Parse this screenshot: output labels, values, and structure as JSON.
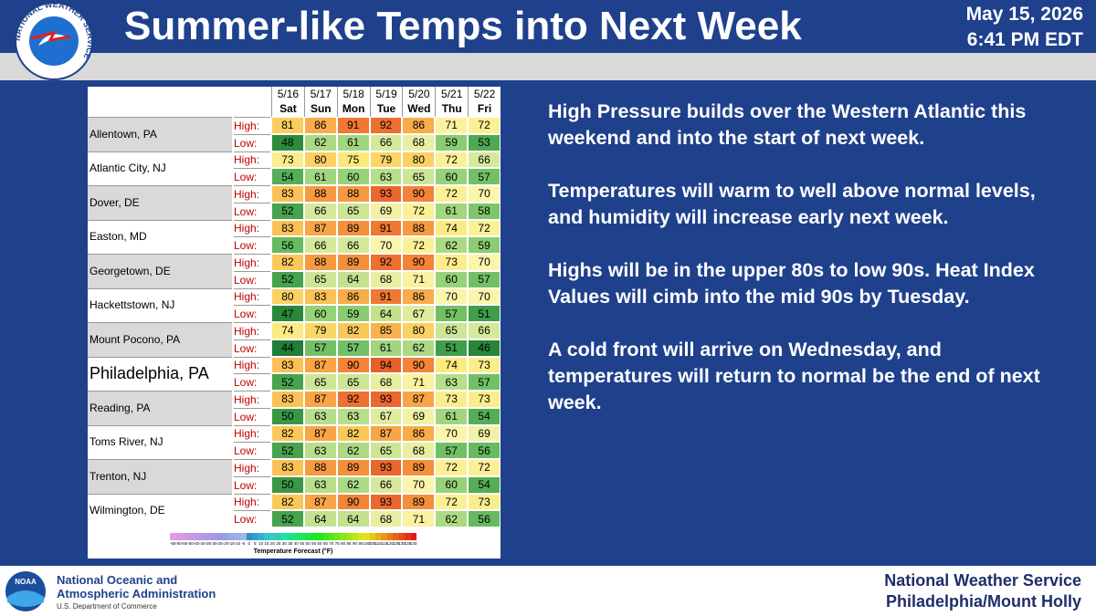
{
  "header": {
    "logo_text": "NATIONAL WEATHER SERVICE",
    "title": "Summer-like Temps into Next Week",
    "date": "May 15, 2026",
    "time": "6:41 PM EDT"
  },
  "table": {
    "dates": [
      "5/16",
      "5/17",
      "5/18",
      "5/19",
      "5/20",
      "5/21",
      "5/22"
    ],
    "days": [
      "Sat",
      "Sun",
      "Mon",
      "Tue",
      "Wed",
      "Thu",
      "Fri"
    ],
    "row_labels": [
      "High:",
      "Low:"
    ],
    "rows": [
      {
        "city": "Allentown, PA",
        "high": [
          81,
          86,
          91,
          92,
          86,
          71,
          72
        ],
        "low": [
          48,
          62,
          61,
          66,
          68,
          59,
          53
        ]
      },
      {
        "city": "Atlantic City, NJ",
        "high": [
          73,
          80,
          75,
          79,
          80,
          72,
          66
        ],
        "low": [
          54,
          61,
          60,
          63,
          65,
          60,
          57
        ]
      },
      {
        "city": "Dover, DE",
        "high": [
          83,
          88,
          88,
          93,
          90,
          72,
          70
        ],
        "low": [
          52,
          66,
          65,
          69,
          72,
          61,
          58
        ]
      },
      {
        "city": "Easton, MD",
        "high": [
          83,
          87,
          89,
          91,
          88,
          74,
          72
        ],
        "low": [
          56,
          66,
          66,
          70,
          72,
          62,
          59
        ]
      },
      {
        "city": "Georgetown, DE",
        "high": [
          82,
          88,
          89,
          92,
          90,
          73,
          70
        ],
        "low": [
          52,
          65,
          64,
          68,
          71,
          60,
          57
        ]
      },
      {
        "city": "Hackettstown, NJ",
        "high": [
          80,
          83,
          86,
          91,
          86,
          70,
          70
        ],
        "low": [
          47,
          60,
          59,
          64,
          67,
          57,
          51
        ]
      },
      {
        "city": "Mount Pocono, PA",
        "high": [
          74,
          79,
          82,
          85,
          80,
          65,
          66
        ],
        "low": [
          44,
          57,
          57,
          61,
          62,
          51,
          46
        ]
      },
      {
        "city": "Philadelphia, PA",
        "high": [
          83,
          87,
          90,
          94,
          90,
          74,
          73
        ],
        "low": [
          52,
          65,
          65,
          68,
          71,
          63,
          57
        ]
      },
      {
        "city": "Reading, PA",
        "high": [
          83,
          87,
          92,
          93,
          87,
          73,
          73
        ],
        "low": [
          50,
          63,
          63,
          67,
          69,
          61,
          54
        ]
      },
      {
        "city": "Toms River, NJ",
        "high": [
          82,
          87,
          82,
          87,
          86,
          70,
          69
        ],
        "low": [
          52,
          63,
          62,
          65,
          68,
          57,
          56
        ]
      },
      {
        "city": "Trenton, NJ",
        "high": [
          83,
          88,
          89,
          93,
          89,
          72,
          72
        ],
        "low": [
          50,
          63,
          62,
          66,
          70,
          60,
          54
        ]
      },
      {
        "city": "Wilmington, DE",
        "high": [
          82,
          87,
          90,
          93,
          89,
          72,
          73
        ],
        "low": [
          52,
          64,
          64,
          68,
          71,
          62,
          56
        ]
      }
    ],
    "scale_labels": [
      -65,
      -60,
      -55,
      -50,
      -45,
      -40,
      -35,
      -30,
      -25,
      -20,
      -15,
      -10,
      -5,
      0,
      5,
      10,
      15,
      20,
      25,
      30,
      35,
      40,
      45,
      50,
      55,
      60,
      65,
      70,
      75,
      80,
      85,
      90,
      95,
      100,
      105,
      110,
      115,
      120,
      125,
      130,
      135,
      140
    ],
    "scale_title": "Temperature Forecast (°F)"
  },
  "summary": [
    "High Pressure builds over the Western Atlantic this weekend and into the start of next week.",
    "Temperatures will warm to well above normal levels, and humidity will increase early next week.",
    "Highs will be in the upper 80s to low 90s. Heat Index Values will cimb into the mid 90s by Tuesday.",
    "A cold front will arrive on Wednesday, and temperatures will return to normal be the end of next week."
  ],
  "footer": {
    "noaa_logo": "NOAA",
    "agency_line1": "National Oceanic and",
    "agency_line2": "Atmospheric Administration",
    "department": "U.S. Department of Commerce",
    "office_line1": "National Weather Service",
    "office_line2": "Philadelphia/Mount Holly"
  }
}
